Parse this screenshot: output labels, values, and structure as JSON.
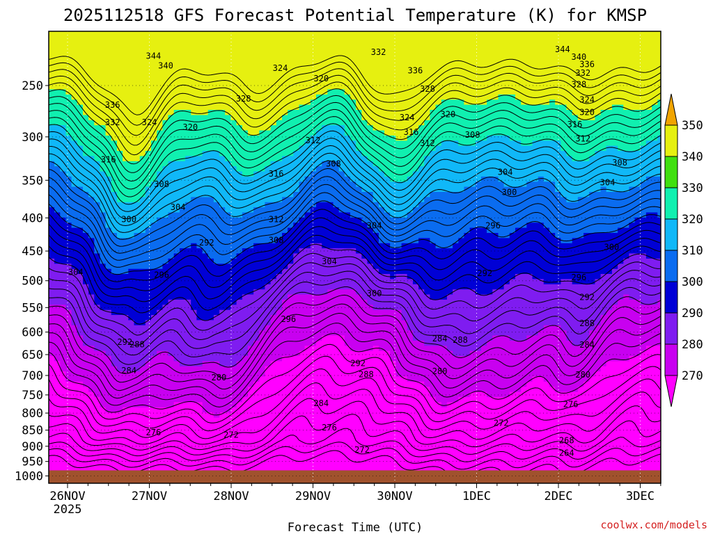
{
  "chart_data": {
    "type": "contour",
    "title": "2025112518 GFS Forecast Potential Temperature (K) for KMSP",
    "xlabel": "Forecast Time (UTC)",
    "ylabel": "",
    "x_ticks": [
      "26NOV",
      "27NOV",
      "28NOV",
      "29NOV",
      "30NOV",
      "1DEC",
      "2DEC",
      "3DEC"
    ],
    "x_year_label": "2025",
    "y_ticks": [
      250,
      300,
      350,
      400,
      450,
      500,
      550,
      600,
      650,
      700,
      750,
      800,
      850,
      900,
      950,
      1000
    ],
    "y_tick_labels": [
      "250",
      "300",
      "350",
      "400",
      "450",
      "500",
      "550",
      "600",
      "650",
      "700",
      "750",
      "800",
      "850",
      "900",
      "950",
      "1000"
    ],
    "ylim": [
      1030,
      200
    ],
    "xlim_days": [
      -0.05,
      7.25
    ],
    "colorbar_ticks": [
      270,
      280,
      290,
      300,
      310,
      320,
      330,
      340,
      350
    ],
    "colorbar_labels": [
      "270",
      "280",
      "290",
      "300",
      "310",
      "320",
      "330",
      "340",
      "350"
    ],
    "colorbar_colors": [
      "#ff00ff",
      "#c800f0",
      "#7f1cf0",
      "#0000d6",
      "#0a6cf0",
      "#10b8f8",
      "#10f0b0",
      "#40e010",
      "#e6f010",
      "#f0a400"
    ],
    "isentrope_levels": [
      264,
      268,
      272,
      276,
      280,
      284,
      288,
      292,
      296,
      300,
      304,
      308,
      312,
      316,
      320,
      324,
      328,
      332,
      336,
      340,
      344
    ],
    "contour_labels": [
      {
        "text": "344",
        "t": 1.05,
        "p": 225
      },
      {
        "text": "340",
        "t": 1.2,
        "p": 233
      },
      {
        "text": "336",
        "t": 0.55,
        "p": 268
      },
      {
        "text": "332",
        "t": 0.55,
        "p": 285
      },
      {
        "text": "324",
        "t": 1.0,
        "p": 285
      },
      {
        "text": "320",
        "t": 1.5,
        "p": 290
      },
      {
        "text": "328",
        "t": 2.15,
        "p": 262
      },
      {
        "text": "324",
        "t": 2.6,
        "p": 235
      },
      {
        "text": "320",
        "t": 3.1,
        "p": 244
      },
      {
        "text": "316",
        "t": 0.5,
        "p": 325
      },
      {
        "text": "308",
        "t": 1.15,
        "p": 355
      },
      {
        "text": "304",
        "t": 1.35,
        "p": 385
      },
      {
        "text": "300",
        "t": 0.75,
        "p": 402
      },
      {
        "text": "296",
        "t": 1.15,
        "p": 490
      },
      {
        "text": "292",
        "t": 1.7,
        "p": 437
      },
      {
        "text": "304",
        "t": 0.1,
        "p": 485
      },
      {
        "text": "316",
        "t": 2.55,
        "p": 342
      },
      {
        "text": "312",
        "t": 3.0,
        "p": 304
      },
      {
        "text": "308",
        "t": 3.25,
        "p": 330
      },
      {
        "text": "312",
        "t": 2.55,
        "p": 402
      },
      {
        "text": "308",
        "t": 2.55,
        "p": 433
      },
      {
        "text": "304",
        "t": 3.2,
        "p": 467
      },
      {
        "text": "304",
        "t": 3.75,
        "p": 411
      },
      {
        "text": "300",
        "t": 3.75,
        "p": 523
      },
      {
        "text": "296",
        "t": 2.7,
        "p": 573
      },
      {
        "text": "332",
        "t": 3.8,
        "p": 222
      },
      {
        "text": "336",
        "t": 4.25,
        "p": 237
      },
      {
        "text": "328",
        "t": 4.4,
        "p": 253
      },
      {
        "text": "324",
        "t": 4.15,
        "p": 280
      },
      {
        "text": "320",
        "t": 4.65,
        "p": 277
      },
      {
        "text": "316",
        "t": 4.2,
        "p": 295
      },
      {
        "text": "312",
        "t": 4.4,
        "p": 307
      },
      {
        "text": "308",
        "t": 4.95,
        "p": 298
      },
      {
        "text": "304",
        "t": 5.35,
        "p": 340
      },
      {
        "text": "300",
        "t": 5.4,
        "p": 365
      },
      {
        "text": "296",
        "t": 5.2,
        "p": 411
      },
      {
        "text": "292",
        "t": 5.1,
        "p": 487
      },
      {
        "text": "288",
        "t": 4.8,
        "p": 617
      },
      {
        "text": "284",
        "t": 4.55,
        "p": 614
      },
      {
        "text": "292",
        "t": 3.55,
        "p": 670
      },
      {
        "text": "288",
        "t": 3.65,
        "p": 697
      },
      {
        "text": "292",
        "t": 0.7,
        "p": 622
      },
      {
        "text": "288",
        "t": 0.85,
        "p": 627
      },
      {
        "text": "284",
        "t": 0.75,
        "p": 688
      },
      {
        "text": "280",
        "t": 1.85,
        "p": 705
      },
      {
        "text": "284",
        "t": 3.1,
        "p": 773
      },
      {
        "text": "280",
        "t": 4.55,
        "p": 690
      },
      {
        "text": "276",
        "t": 1.05,
        "p": 857
      },
      {
        "text": "272",
        "t": 2.0,
        "p": 865
      },
      {
        "text": "276",
        "t": 3.2,
        "p": 842
      },
      {
        "text": "272",
        "t": 3.6,
        "p": 912
      },
      {
        "text": "272",
        "t": 5.3,
        "p": 829
      },
      {
        "text": "268",
        "t": 6.1,
        "p": 882
      },
      {
        "text": "264",
        "t": 6.1,
        "p": 922
      },
      {
        "text": "276",
        "t": 6.15,
        "p": 776
      },
      {
        "text": "280",
        "t": 6.3,
        "p": 698
      },
      {
        "text": "284",
        "t": 6.35,
        "p": 628
      },
      {
        "text": "288",
        "t": 6.35,
        "p": 582
      },
      {
        "text": "292",
        "t": 6.35,
        "p": 530
      },
      {
        "text": "296",
        "t": 6.25,
        "p": 494
      },
      {
        "text": "300",
        "t": 6.65,
        "p": 444
      },
      {
        "text": "304",
        "t": 6.6,
        "p": 353
      },
      {
        "text": "308",
        "t": 6.75,
        "p": 329
      },
      {
        "text": "312",
        "t": 6.3,
        "p": 302
      },
      {
        "text": "316",
        "t": 6.2,
        "p": 287
      },
      {
        "text": "320",
        "t": 6.35,
        "p": 275
      },
      {
        "text": "324",
        "t": 6.35,
        "p": 263
      },
      {
        "text": "328",
        "t": 6.25,
        "p": 249
      },
      {
        "text": "332",
        "t": 6.3,
        "p": 239
      },
      {
        "text": "336",
        "t": 6.35,
        "p": 232
      },
      {
        "text": "340",
        "t": 6.25,
        "p": 226
      },
      {
        "text": "344",
        "t": 6.05,
        "p": 220
      }
    ],
    "surface_color": "#a0522d",
    "grid": "dotted"
  },
  "credit": "coolwx.com/models"
}
